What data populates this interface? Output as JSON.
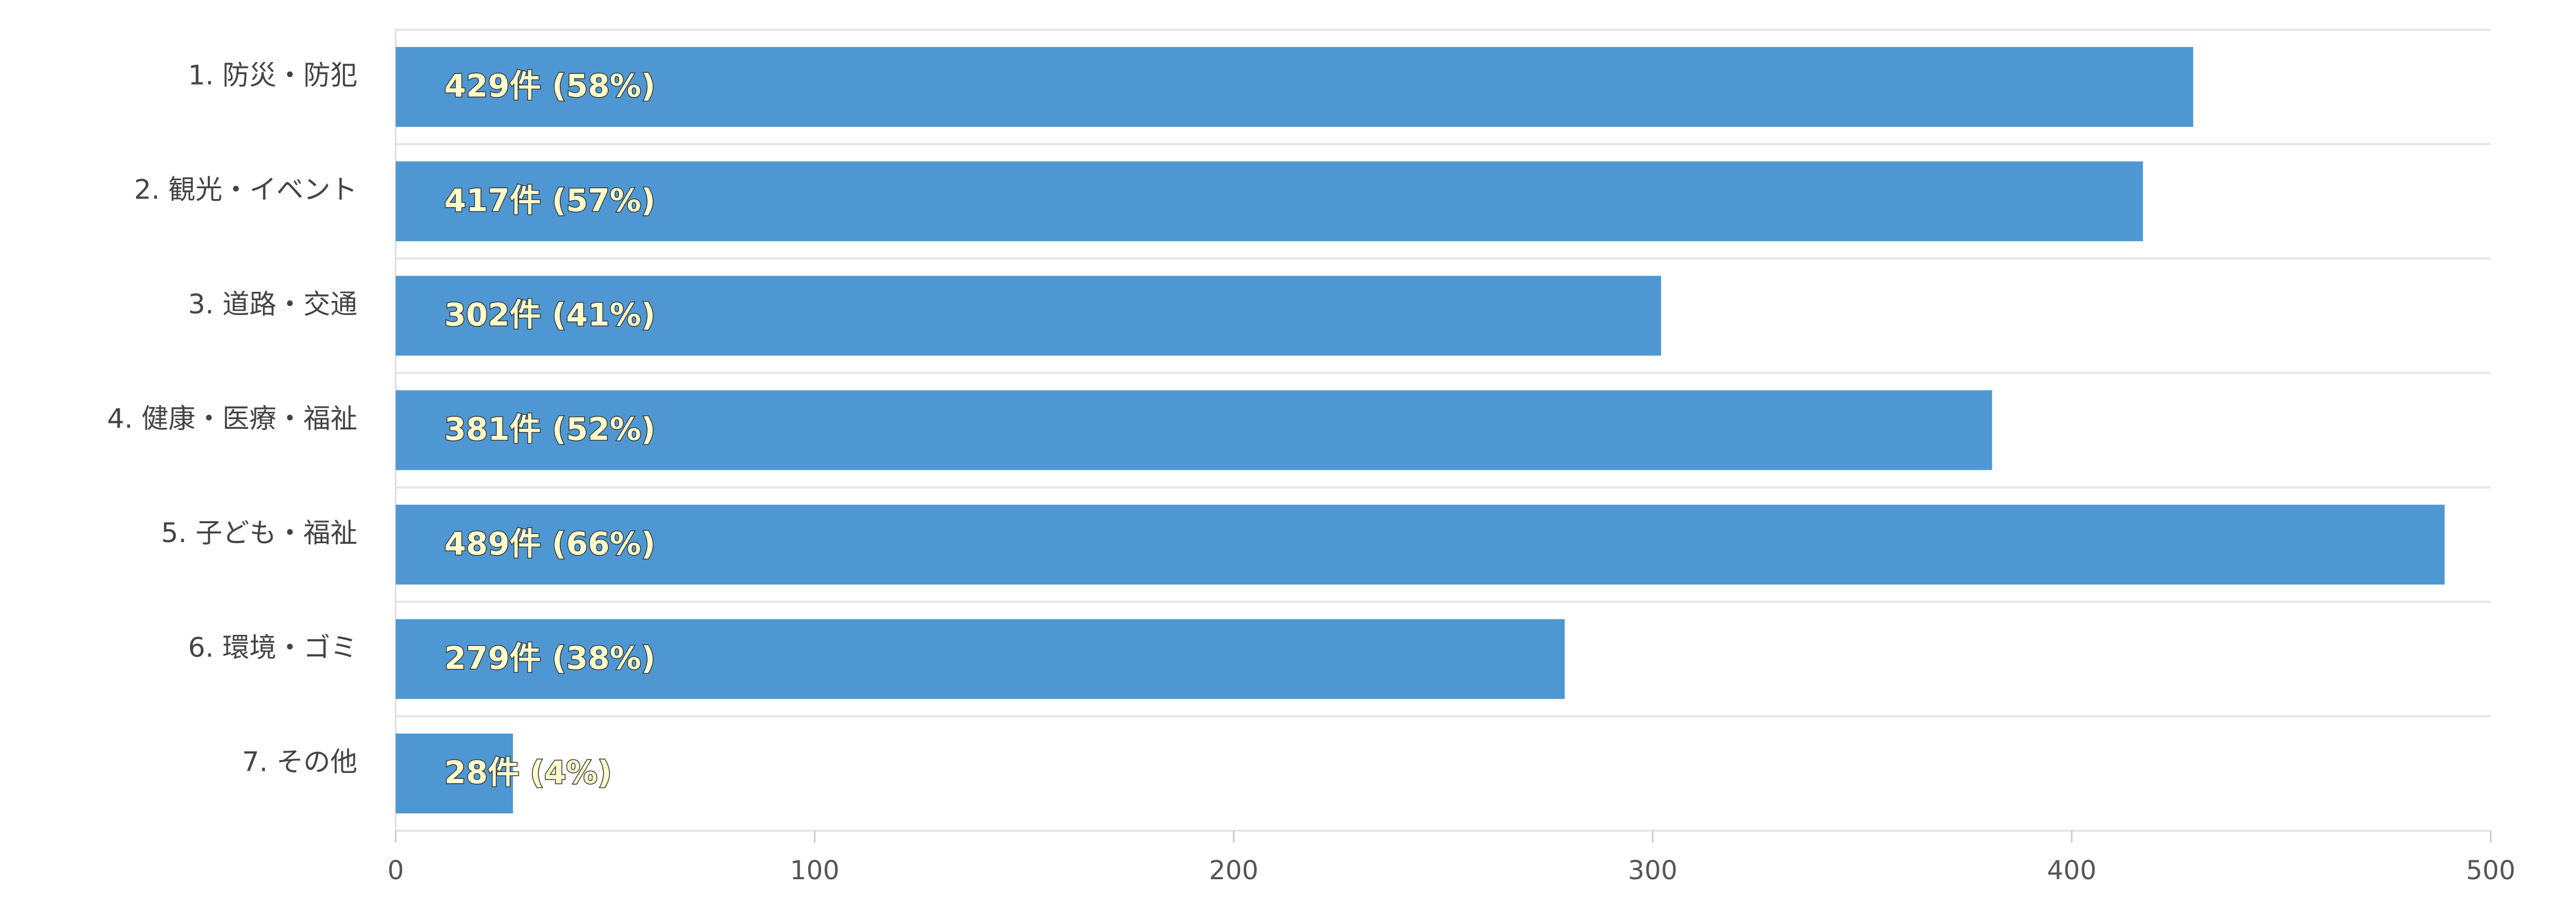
{
  "chart_data": {
    "type": "bar",
    "orientation": "horizontal",
    "categories": [
      "1. 防災・防犯",
      "2. 観光・イベント",
      "3. 道路・交通",
      "4. 健康・医療・福祉",
      "5. 子ども・福祉",
      "6. 環境・ゴミ",
      "7. その他"
    ],
    "values": [
      429,
      417,
      302,
      381,
      489,
      279,
      28
    ],
    "value_labels": [
      "429件 (58%)",
      "417件 (57%)",
      "302件 (41%)",
      "381件 (52%)",
      "489件 (66%)",
      "279件 (38%)",
      "28件 (4%)"
    ],
    "color": "#4f97d3",
    "xlim": [
      0,
      500
    ],
    "xticks": [
      0,
      100,
      200,
      300,
      400,
      500
    ]
  }
}
